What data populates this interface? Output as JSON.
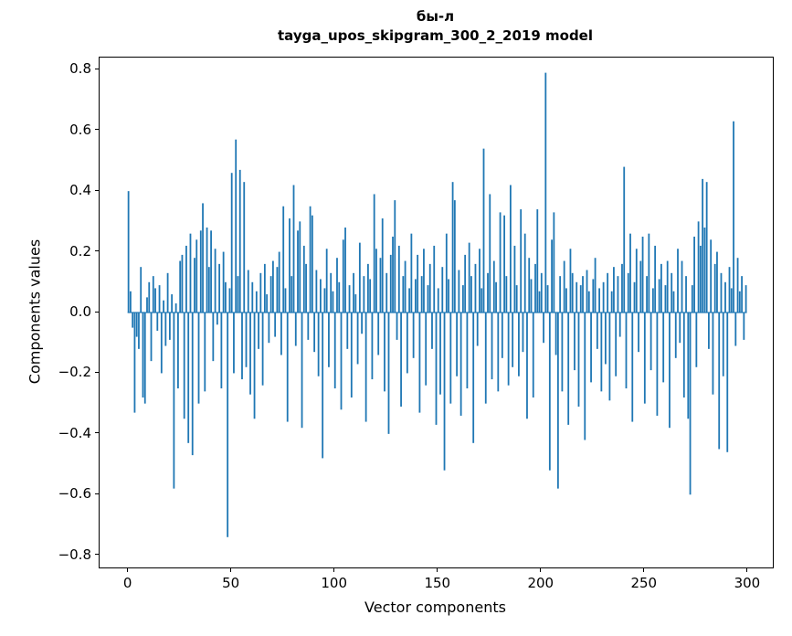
{
  "figure": {
    "title_line1": "бы-л",
    "title_line2": "tayga_upos_skipgram_300_2_2019 model",
    "xlabel": "Vector components",
    "ylabel": "Components values"
  },
  "chart_data": {
    "type": "bar",
    "title": "бы-л",
    "subtitle": "tayga_upos_skipgram_300_2_2019 model",
    "xlabel": "Vector components",
    "ylabel": "Components values",
    "color": "#1f77b4",
    "n_components": 300,
    "xlim": [
      -14,
      312
    ],
    "ylim": [
      -0.84,
      0.84
    ],
    "grid": false,
    "legend": "none",
    "xtick_values": [
      0,
      50,
      100,
      150,
      200,
      250,
      300
    ],
    "xtick_labels": [
      "0",
      "50",
      "100",
      "150",
      "200",
      "250",
      "300"
    ],
    "ytick_values": [
      0.8,
      0.6,
      0.4,
      0.2,
      0.0,
      -0.2,
      -0.4,
      -0.6,
      -0.8
    ],
    "ytick_labels": [
      "0.8",
      "0.6",
      "0.4",
      "0.2",
      "0.0",
      "−0.2",
      "−0.4",
      "−0.6",
      "−0.8"
    ],
    "values": [
      0.4,
      0.07,
      -0.05,
      -0.33,
      -0.08,
      -0.12,
      0.15,
      -0.28,
      -0.3,
      0.05,
      0.1,
      -0.16,
      0.12,
      0.08,
      -0.06,
      0.09,
      -0.2,
      0.04,
      -0.11,
      0.13,
      -0.09,
      0.06,
      -0.58,
      0.03,
      -0.25,
      0.17,
      0.19,
      -0.35,
      0.22,
      -0.43,
      0.26,
      -0.47,
      0.18,
      0.24,
      -0.3,
      0.27,
      0.36,
      -0.26,
      0.28,
      0.15,
      0.27,
      -0.16,
      0.21,
      -0.04,
      0.16,
      -0.25,
      0.2,
      0.1,
      -0.74,
      0.08,
      0.46,
      -0.2,
      0.57,
      0.12,
      0.47,
      -0.22,
      0.43,
      -0.18,
      0.14,
      -0.27,
      0.1,
      -0.35,
      0.07,
      -0.12,
      0.13,
      -0.24,
      0.16,
      0.06,
      -0.1,
      0.12,
      0.17,
      -0.08,
      0.15,
      0.2,
      -0.14,
      0.35,
      0.08,
      -0.36,
      0.31,
      0.12,
      0.42,
      -0.11,
      0.27,
      0.3,
      -0.38,
      0.22,
      0.16,
      -0.09,
      0.35,
      0.32,
      -0.13,
      0.14,
      -0.21,
      0.11,
      -0.48,
      0.08,
      0.21,
      -0.18,
      0.13,
      0.07,
      -0.25,
      0.18,
      0.1,
      -0.32,
      0.24,
      0.28,
      -0.12,
      0.09,
      -0.28,
      0.13,
      0.06,
      -0.17,
      0.23,
      -0.07,
      0.12,
      -0.36,
      0.16,
      0.11,
      -0.22,
      0.39,
      0.21,
      -0.14,
      0.18,
      0.31,
      -0.26,
      0.13,
      -0.4,
      0.19,
      0.25,
      0.37,
      -0.09,
      0.22,
      -0.31,
      0.12,
      0.17,
      -0.2,
      0.08,
      0.26,
      -0.15,
      0.11,
      0.19,
      -0.33,
      0.12,
      0.21,
      -0.24,
      0.09,
      0.16,
      -0.12,
      0.22,
      -0.37,
      0.08,
      -0.27,
      0.15,
      -0.52,
      0.26,
      0.11,
      -0.3,
      0.43,
      0.37,
      -0.21,
      0.14,
      -0.34,
      0.09,
      0.19,
      -0.25,
      0.23,
      0.12,
      -0.43,
      0.16,
      -0.11,
      0.21,
      0.08,
      0.54,
      -0.3,
      0.13,
      0.39,
      -0.22,
      0.17,
      0.1,
      -0.26,
      0.33,
      -0.15,
      0.32,
      0.12,
      -0.24,
      0.42,
      -0.18,
      0.22,
      0.09,
      -0.21,
      0.34,
      -0.13,
      0.26,
      -0.35,
      0.18,
      0.11,
      -0.28,
      0.16,
      0.34,
      0.07,
      0.13,
      -0.1,
      0.79,
      0.09,
      -0.52,
      0.24,
      0.33,
      -0.14,
      -0.58,
      0.12,
      -0.26,
      0.17,
      0.08,
      -0.37,
      0.21,
      0.13,
      -0.19,
      0.1,
      -0.31,
      0.09,
      0.12,
      -0.42,
      0.14,
      0.07,
      -0.23,
      0.11,
      0.18,
      -0.12,
      0.08,
      -0.26,
      0.1,
      -0.17,
      0.13,
      -0.29,
      0.07,
      0.15,
      -0.21,
      0.12,
      -0.08,
      0.16,
      0.48,
      -0.25,
      0.13,
      0.26,
      -0.36,
      0.1,
      0.21,
      -0.13,
      0.17,
      0.25,
      -0.3,
      0.12,
      0.26,
      -0.19,
      0.08,
      0.22,
      -0.34,
      0.11,
      0.16,
      -0.23,
      0.09,
      0.17,
      -0.38,
      0.13,
      0.07,
      -0.15,
      0.21,
      -0.1,
      0.17,
      -0.28,
      0.12,
      -0.35,
      -0.6,
      0.09,
      0.25,
      -0.18,
      0.3,
      0.22,
      0.44,
      0.28,
      0.43,
      -0.12,
      0.24,
      -0.27,
      0.16,
      0.2,
      -0.45,
      0.13,
      -0.21,
      0.1,
      -0.46,
      0.15,
      0.08,
      0.63,
      -0.11,
      0.18,
      0.07,
      0.12,
      -0.09,
      0.09
    ]
  }
}
